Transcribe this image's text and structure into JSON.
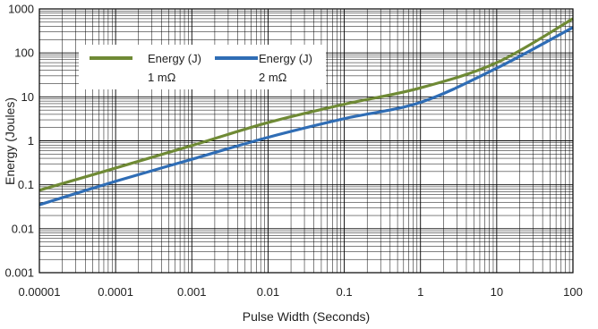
{
  "chart_data": {
    "type": "line",
    "title": "",
    "xlabel": "Pulse Width (Seconds)",
    "ylabel": "Energy (Joules)",
    "x_scale": "log",
    "y_scale": "log",
    "xlim": [
      1e-05,
      100
    ],
    "ylim": [
      0.001,
      1000
    ],
    "x_ticks": [
      "0.00001",
      "0.0001",
      "0.001",
      "0.01",
      "0.1",
      "1",
      "10",
      "100"
    ],
    "y_ticks": [
      "0.001",
      "0.01",
      "0.1",
      "1",
      "10",
      "100",
      "1000"
    ],
    "grid": true,
    "legend_position": "top-left",
    "series": [
      {
        "name": "Energy (J)",
        "sublabel": "1 mΩ",
        "color": "#6f8a35",
        "points": [
          [
            1e-05,
            0.075
          ],
          [
            0.0001,
            0.24
          ],
          [
            0.001,
            0.78
          ],
          [
            0.01,
            2.6
          ],
          [
            0.1,
            6.8
          ],
          [
            1,
            16
          ],
          [
            10,
            60
          ],
          [
            100,
            600
          ]
        ]
      },
      {
        "name": "Energy (J)",
        "sublabel": "2 mΩ",
        "color": "#2f6db5",
        "points": [
          [
            1e-05,
            0.035
          ],
          [
            0.0001,
            0.12
          ],
          [
            0.001,
            0.38
          ],
          [
            0.01,
            1.2
          ],
          [
            0.1,
            3.2
          ],
          [
            1,
            7.5
          ],
          [
            10,
            45
          ],
          [
            100,
            380
          ]
        ]
      }
    ]
  }
}
